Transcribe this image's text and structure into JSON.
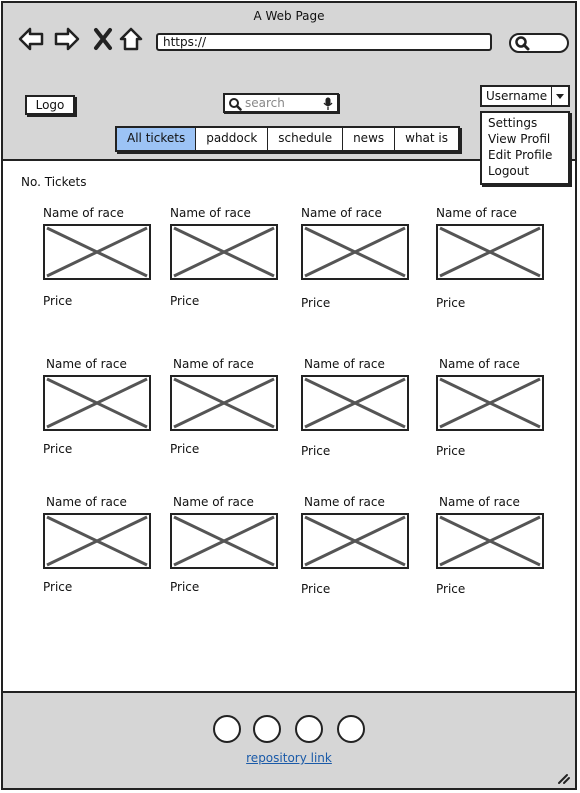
{
  "window": {
    "title": "A Web Page",
    "url": "https://"
  },
  "header": {
    "logo": "Logo",
    "search_placeholder": "search",
    "tabs": [
      "All tickets",
      "paddock",
      "schedule",
      "news",
      "what is"
    ],
    "user": {
      "name": "Username",
      "menu": [
        "Settings",
        "View Profil",
        "Edit Profile",
        "Logout"
      ]
    }
  },
  "content": {
    "heading": "No. Tickets",
    "cards": [
      {
        "title": "Name of race",
        "price": "Price"
      },
      {
        "title": "Name of race",
        "price": "Price"
      },
      {
        "title": "Name of race",
        "price": "Price"
      },
      {
        "title": "Name of race",
        "price": "Price"
      },
      {
        "title": "Name of race",
        "price": "Price"
      },
      {
        "title": "Name of race",
        "price": "Price"
      },
      {
        "title": "Name of race",
        "price": "Price"
      },
      {
        "title": "Name of race",
        "price": "Price"
      },
      {
        "title": "Name of race",
        "price": "Price"
      },
      {
        "title": "Name of race",
        "price": "Price"
      },
      {
        "title": "Name of race",
        "price": "Price"
      },
      {
        "title": "Name of race",
        "price": "Price"
      }
    ]
  },
  "footer": {
    "repo_link": "repository link",
    "icon_count": 4
  },
  "icons": [
    "back-arrow-icon",
    "forward-arrow-icon",
    "close-icon",
    "home-icon",
    "search-icon",
    "microphone-icon",
    "chevron-down-icon",
    "resize-grip-icon"
  ],
  "colors": {
    "chrome": "#d6d6d6",
    "active_tab": "#9cc3f5",
    "link": "#1a5aa8"
  }
}
